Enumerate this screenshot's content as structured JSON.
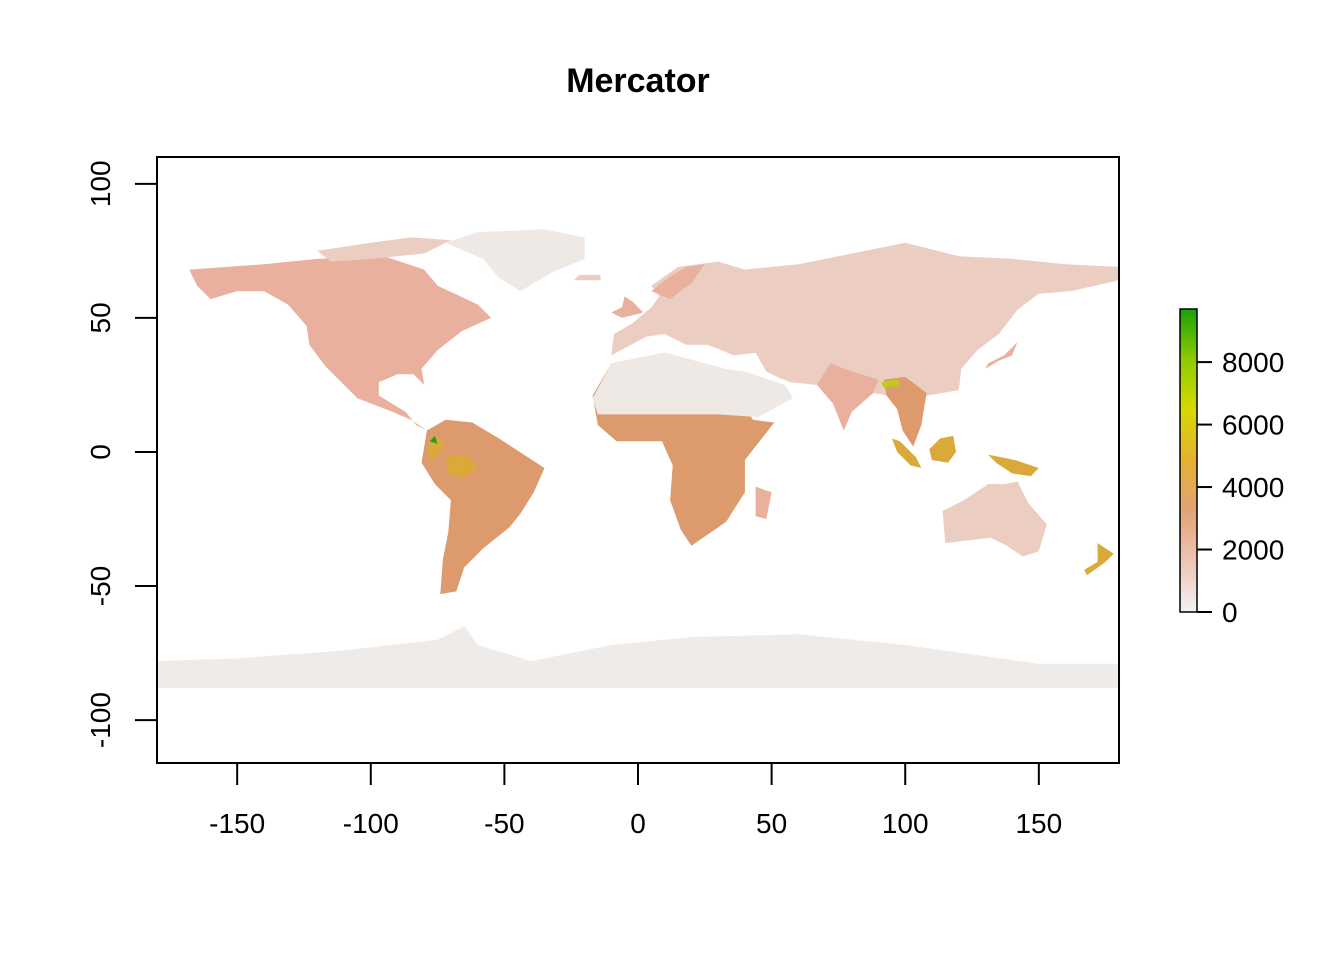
{
  "chart_data": {
    "type": "heatmap",
    "title": "Mercator",
    "xlabel": "",
    "ylabel": "",
    "xlim": [
      -180,
      180
    ],
    "ylim": [
      -116,
      110
    ],
    "x_ticks": [
      -150,
      -100,
      -50,
      0,
      50,
      100,
      150
    ],
    "x_tick_labels": [
      "-150",
      "-100",
      "-50",
      "0",
      "50",
      "100",
      "150"
    ],
    "y_ticks": [
      100,
      50,
      0,
      -50,
      -100
    ],
    "y_tick_labels": [
      "100",
      "50",
      "0",
      "-50",
      "-100"
    ],
    "legend": {
      "placement": "right",
      "range": [
        0,
        9700
      ],
      "ticks": [
        0,
        2000,
        4000,
        6000,
        8000
      ],
      "tick_labels": [
        "0",
        "2000",
        "4000",
        "6000",
        "8000"
      ],
      "colors": [
        "#f2f2f2",
        "#eec5b5",
        "#e3a278",
        "#e5b031",
        "#d7d900",
        "#8ecb00",
        "#1aa10a"
      ]
    },
    "colors": {
      "low": "#efe9e6",
      "light": "#eccdc2",
      "mid": "#e8b09d",
      "tropics": "#dd9a6c",
      "high": "#d9a93a",
      "peak": "#b9cf10",
      "max": "#2b9f0f",
      "antarctica": "#efebe9"
    }
  }
}
